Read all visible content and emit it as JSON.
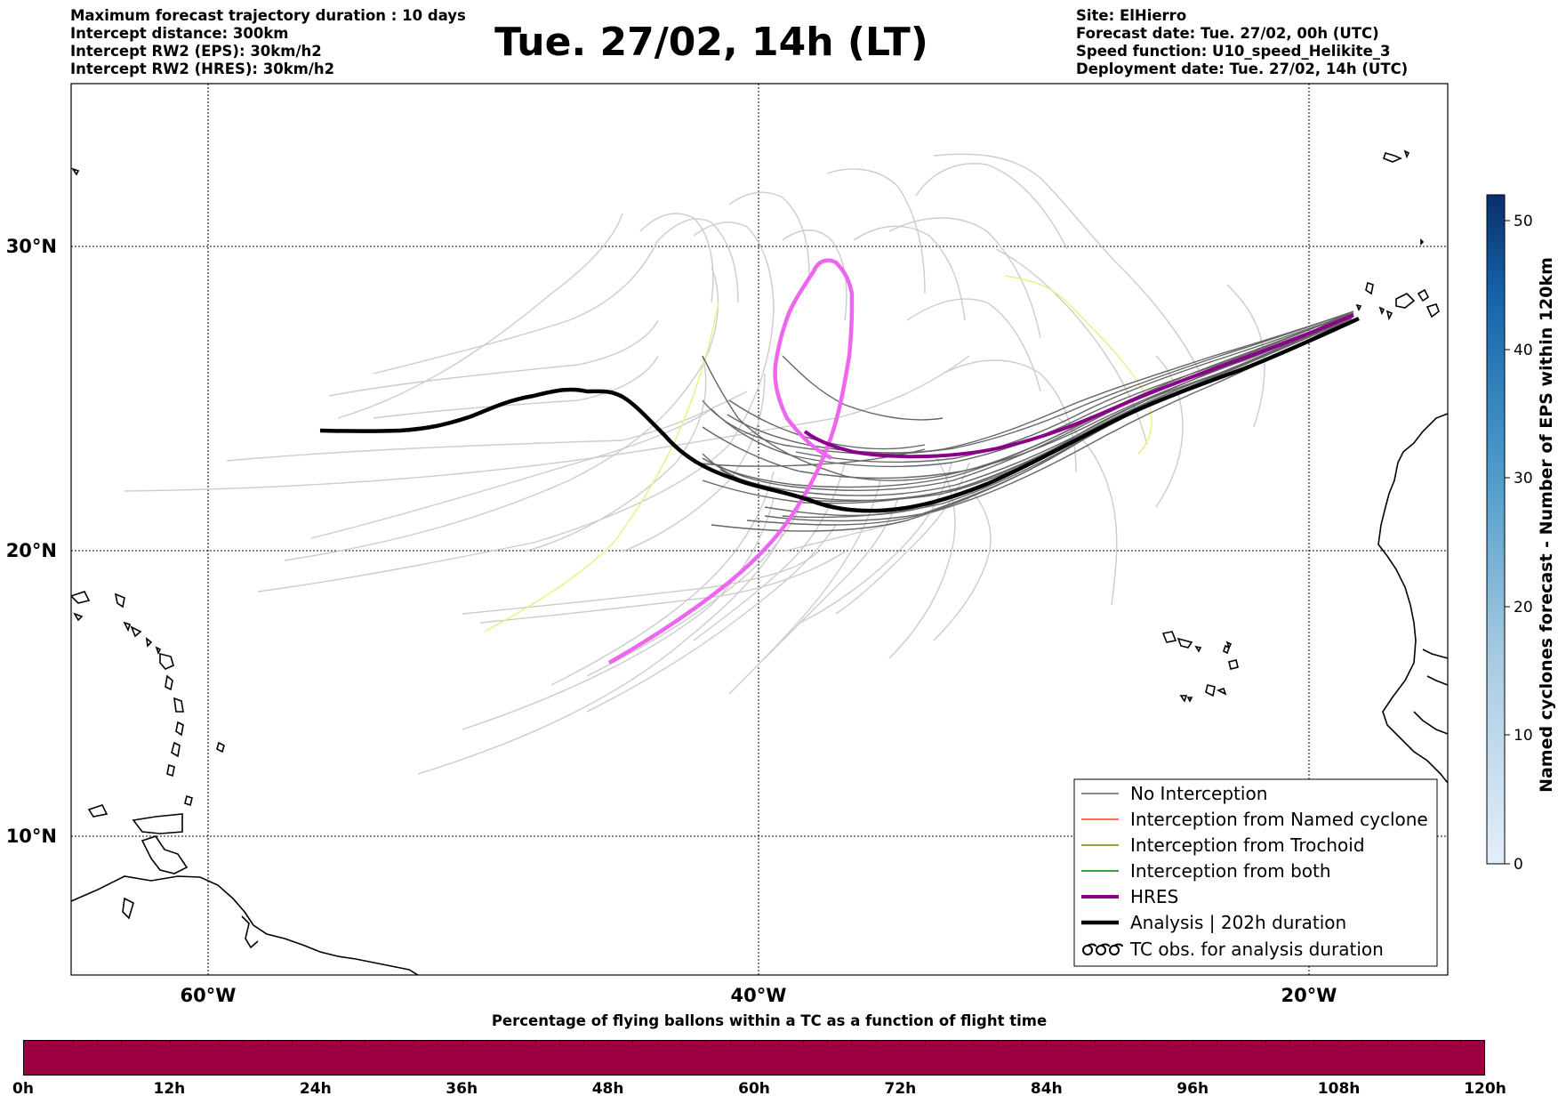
{
  "header": {
    "left_lines": [
      "Maximum forecast trajectory duration : 10 days",
      "Intercept distance: 300km",
      "Intercept RW2 (EPS):  30km/h2",
      "Intercept RW2 (HRES): 30km/h2"
    ],
    "title": "Tue. 27/02, 14h (LT)",
    "right_lines": [
      "Site: ElHierro",
      "Forecast date: Tue. 27/02, 00h (UTC)",
      "Speed function: U10_speed_Helikite_3",
      "Deployment date: Tue. 27/02, 14h (UTC)"
    ]
  },
  "map": {
    "lon_ticks": [
      "60°W",
      "40°W",
      "20°W"
    ],
    "lat_ticks": [
      "30°N",
      "20°N",
      "10°N"
    ],
    "colors": {
      "no_interception": "#666666",
      "named_cyclone": "#ff4500",
      "trochoid": "#808000",
      "both": "#008000",
      "hres": "#8b008b",
      "analysis": "#000000",
      "eps_faint": "#cccccc",
      "magenta_track": "#ee66ee",
      "yellow_track": "#eeee88"
    }
  },
  "legend": {
    "items": [
      "No Interception",
      "Interception from Named cyclone",
      "Interception from Trochoid",
      "Interception from both",
      "HRES",
      "Analysis | 202h duration",
      "TC obs. for analysis duration"
    ]
  },
  "colorbar": {
    "label": "Named cyclones forecast - Number of EPS within 120km",
    "ticks": [
      "0",
      "10",
      "20",
      "30",
      "40",
      "50"
    ],
    "min": 0,
    "max": 52
  },
  "percentage_bar": {
    "title": "Percentage of flying ballons within a TC as a function of flight time",
    "color": "#9c0040",
    "ticks": [
      "0h",
      "12h",
      "24h",
      "36h",
      "48h",
      "60h",
      "72h",
      "84h",
      "96h",
      "108h",
      "120h"
    ]
  }
}
